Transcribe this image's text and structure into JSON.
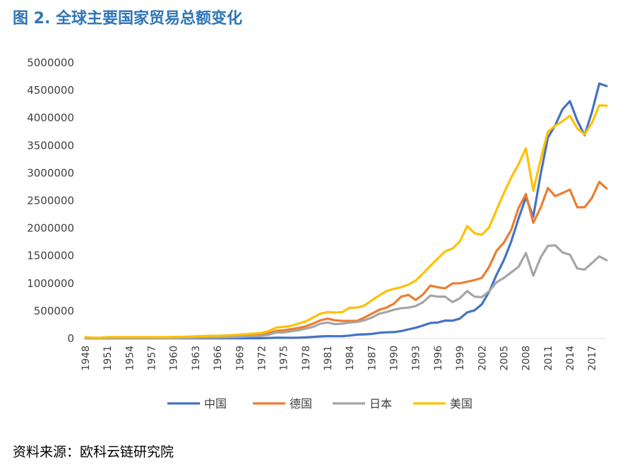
{
  "figure": {
    "title": "图 2. 全球主要国家贸易总额变化",
    "source": "资料来源：欧科云链研究院"
  },
  "chart_data": {
    "type": "line",
    "ylim": [
      0,
      5000000
    ],
    "yticks": [
      0,
      500000,
      1000000,
      1500000,
      2000000,
      2500000,
      3000000,
      3500000,
      4000000,
      4500000,
      5000000
    ],
    "ytick_labels": [
      "0",
      "500000",
      "1000000",
      "1500000",
      "2000000",
      "2500000",
      "3000000",
      "3500000",
      "4000000",
      "4500000",
      "5000000"
    ],
    "xtick_labels": [
      "1948",
      "1951",
      "1954",
      "1957",
      "1960",
      "1963",
      "1966",
      "1969",
      "1972",
      "1975",
      "1978",
      "1981",
      "1984",
      "1987",
      "1990",
      "1993",
      "1996",
      "1999",
      "2002",
      "2005",
      "2008",
      "2011",
      "2014",
      "2017"
    ],
    "grid": false,
    "legend_position": "bottom",
    "x": [
      1948,
      1949,
      1950,
      1951,
      1952,
      1953,
      1954,
      1955,
      1956,
      1957,
      1958,
      1959,
      1960,
      1961,
      1962,
      1963,
      1964,
      1965,
      1966,
      1967,
      1968,
      1969,
      1970,
      1971,
      1972,
      1973,
      1974,
      1975,
      1976,
      1977,
      1978,
      1979,
      1980,
      1981,
      1982,
      1983,
      1984,
      1985,
      1986,
      1987,
      1988,
      1989,
      1990,
      1991,
      1992,
      1993,
      1994,
      1995,
      1996,
      1997,
      1998,
      1999,
      2000,
      2001,
      2002,
      2003,
      2004,
      2005,
      2006,
      2007,
      2008,
      2009,
      2010,
      2011,
      2012,
      2013,
      2014,
      2015,
      2016,
      2017,
      2018,
      2019
    ],
    "series": [
      {
        "name": "中国",
        "color": "#4472c4",
        "values": [
          2000,
          2000,
          2000,
          3000,
          3000,
          3000,
          3000,
          3000,
          3000,
          3000,
          4000,
          4000,
          4000,
          4000,
          3000,
          3000,
          3000,
          4000,
          4000,
          4000,
          4000,
          4000,
          5000,
          5000,
          6000,
          10000,
          14000,
          15000,
          13000,
          15000,
          21000,
          29000,
          38000,
          44000,
          42000,
          44000,
          54000,
          70000,
          75000,
          83000,
          103000,
          112000,
          116000,
          136000,
          166000,
          196000,
          237000,
          281000,
          290000,
          325000,
          324000,
          361000,
          474000,
          510000,
          621000,
          851000,
          1155000,
          1422000,
          1760000,
          2177000,
          2563000,
          2208000,
          2974000,
          3642000,
          3867000,
          4159000,
          4303000,
          3953000,
          3685000,
          4107000,
          4623000,
          4578000
        ]
      },
      {
        "name": "德国",
        "color": "#ed7d31",
        "values": [
          15000,
          10000,
          8000,
          15000,
          15000,
          15000,
          15000,
          15000,
          15000,
          15000,
          15000,
          15000,
          20000,
          20000,
          25000,
          30000,
          30000,
          30000,
          30000,
          35000,
          40000,
          50000,
          60000,
          65000,
          80000,
          100000,
          140000,
          150000,
          170000,
          190000,
          220000,
          270000,
          330000,
          360000,
          330000,
          320000,
          320000,
          320000,
          380000,
          450000,
          520000,
          560000,
          630000,
          760000,
          790000,
          700000,
          800000,
          960000,
          930000,
          910000,
          1000000,
          1000000,
          1030000,
          1060000,
          1100000,
          1300000,
          1590000,
          1740000,
          1970000,
          2370000,
          2620000,
          2100000,
          2370000,
          2730000,
          2580000,
          2640000,
          2700000,
          2380000,
          2380000,
          2550000,
          2840000,
          2720000
        ]
      },
      {
        "name": "日本",
        "color": "#a5a5a5",
        "values": [
          5000,
          5000,
          5000,
          5000,
          5000,
          5000,
          5000,
          5000,
          5000,
          5000,
          5000,
          5000,
          8000,
          10000,
          10000,
          12000,
          15000,
          18000,
          20000,
          22000,
          25000,
          30000,
          40000,
          45000,
          50000,
          70000,
          110000,
          110000,
          130000,
          150000,
          180000,
          210000,
          270000,
          290000,
          260000,
          270000,
          290000,
          300000,
          330000,
          380000,
          450000,
          480000,
          520000,
          550000,
          560000,
          590000,
          660000,
          780000,
          760000,
          760000,
          660000,
          730000,
          860000,
          760000,
          750000,
          860000,
          1020000,
          1100000,
          1200000,
          1300000,
          1550000,
          1140000,
          1470000,
          1680000,
          1690000,
          1560000,
          1520000,
          1270000,
          1250000,
          1370000,
          1490000,
          1420000
        ]
      },
      {
        "name": "美国",
        "color": "#ffc000",
        "values": [
          25000,
          15000,
          15000,
          25000,
          25000,
          25000,
          25000,
          25000,
          25000,
          25000,
          25000,
          25000,
          30000,
          30000,
          35000,
          40000,
          45000,
          50000,
          50000,
          55000,
          60000,
          70000,
          80000,
          90000,
          100000,
          140000,
          200000,
          210000,
          230000,
          270000,
          310000,
          380000,
          450000,
          480000,
          470000,
          480000,
          560000,
          560000,
          600000,
          690000,
          780000,
          860000,
          900000,
          930000,
          980000,
          1050000,
          1180000,
          1320000,
          1450000,
          1580000,
          1630000,
          1760000,
          2040000,
          1910000,
          1880000,
          2020000,
          2330000,
          2640000,
          2920000,
          3160000,
          3450000,
          2680000,
          3240000,
          3750000,
          3860000,
          3940000,
          4040000,
          3810000,
          3700000,
          3910000,
          4230000,
          4220000
        ]
      }
    ]
  }
}
